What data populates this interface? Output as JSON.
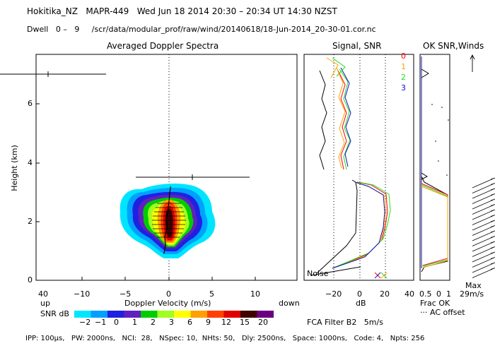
{
  "header": {
    "title": "Hokitika_NZ   MAPR-449   Wed Jun 18 2014 20:30 – 20:34 UT 14:30 NZST",
    "dwell": "Dwell   0 –   9     /scr/data/modular_prof/raw/wind/20140618/18-Jun-2014_20-30-01.cor.nc"
  },
  "panels": {
    "spectra_title": "Averaged Doppler Spectra",
    "signal_title": "Signal, SNR",
    "ok_title": "OK SNR,Winds"
  },
  "axes": {
    "ylabel": "Height (km)",
    "y_ticks": [
      "0",
      "2",
      "4",
      "6"
    ],
    "x_ticks": [
      "−10",
      "−5",
      "0",
      "5",
      "10"
    ],
    "x_extra_left": "up",
    "x_extra_right": "down",
    "x_extra_left_val": "40",
    "xlabel": "Doppler Velocity (m/s)",
    "snr_x_ticks": [
      "−20",
      "0",
      "20",
      "40"
    ],
    "snr_xlabel": "dB",
    "noise_label": "Noise",
    "ok_x_ticks": [
      "0.5",
      "1"
    ],
    "ok_tick_left": "0",
    "frac_ok": "Frac OK",
    "ac_offset": "··· AC offset",
    "max_label": "Max",
    "max_value": "29m/s"
  },
  "beams": [
    {
      "label": "0",
      "color": "#ff0000"
    },
    {
      "label": "1",
      "color": "#ffa500"
    },
    {
      "label": "2",
      "color": "#22dd22"
    },
    {
      "label": "3",
      "color": "#1010c0"
    }
  ],
  "colorbar": {
    "title": "SNR dB",
    "labels": [
      "−2",
      "−1",
      "0",
      "1",
      "2",
      "3",
      "6",
      "9",
      "12",
      "15",
      "20"
    ],
    "colors": [
      "#00e5ff",
      "#00a0ff",
      "#2020e0",
      "#6020c0",
      "#00cc00",
      "#a0ff20",
      "#ffff00",
      "#ffa000",
      "#ff4000",
      "#e00000",
      "#400000",
      "#6a0080"
    ]
  },
  "footer": {
    "filter": "FCA Filter B2   5m/s",
    "params": "IPP: 100μs,   PW: 2000ns,   NCI:  28,   NSpec: 10,  NHts: 50,   Dly: 2500ns,   Space: 1000ns,   Code: 4,   Npts: 256"
  },
  "chart_data": {
    "type": "line",
    "title": "Averaged Doppler Spectra",
    "ylabel": "Height (km)",
    "ylim": [
      0,
      7.5
    ],
    "panels": [
      {
        "name": "spectra",
        "xlabel": "Doppler Velocity (m/s)",
        "xlim": [
          -14,
          14
        ],
        "mean_velocity": {
          "height_km": [
            0.9,
            1.2,
            1.5,
            1.8,
            2.1,
            2.4,
            2.7,
            3.0,
            3.2
          ],
          "velocity_ms": [
            -0.6,
            -0.4,
            -0.5,
            -0.2,
            -0.3,
            -0.1,
            0.0,
            0.1,
            0.2
          ]
        }
      },
      {
        "name": "signal_snr",
        "xlabel": "dB",
        "xlim": [
          -30,
          40
        ],
        "noise_db": -18,
        "height_km": [
          0.6,
          0.9,
          1.2,
          1.5,
          1.8,
          2.1,
          2.4,
          2.7,
          3.0,
          3.3
        ],
        "signal_db": [
          -28,
          -3,
          -1,
          0,
          1,
          2,
          3,
          3,
          2,
          -8
        ],
        "snr_db": {
          "0": [
            -20,
            18,
            23,
            25,
            27,
            27,
            28,
            27,
            24,
            5
          ],
          "1": [
            -20,
            17,
            22,
            24,
            26,
            27,
            27,
            26,
            23,
            4
          ],
          "2": [
            -20,
            19,
            24,
            26,
            28,
            28,
            29,
            28,
            25,
            6
          ],
          "3": [
            -20,
            16,
            22,
            24,
            26,
            26,
            27,
            26,
            23,
            4
          ]
        }
      },
      {
        "name": "ok_snr_winds",
        "xlabel": "Frac OK",
        "xlim": [
          0,
          1
        ],
        "max_wind": "29m/s"
      }
    ]
  }
}
